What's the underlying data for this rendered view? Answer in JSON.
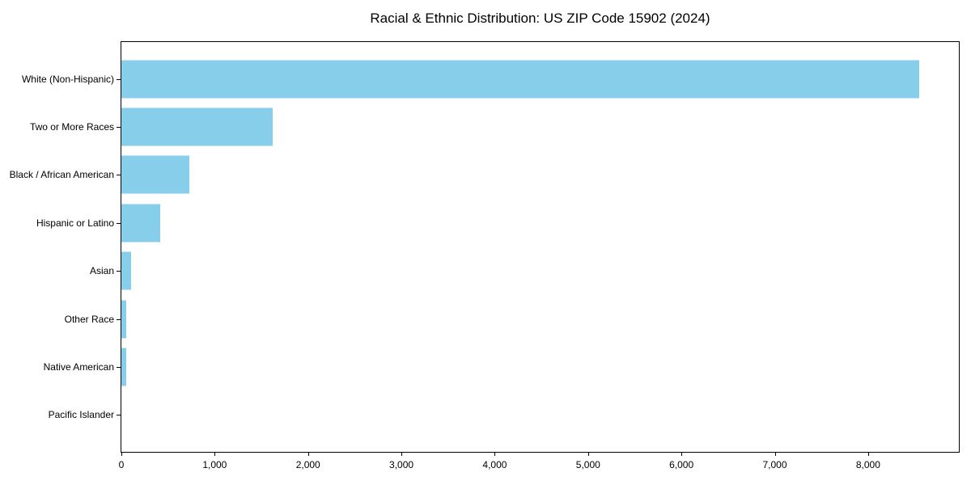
{
  "chart_data": {
    "type": "bar",
    "orientation": "horizontal",
    "title": "Racial & Ethnic Distribution: US ZIP Code 15902 (2024)",
    "xlabel": "",
    "ylabel": "",
    "categories": [
      "White (Non-Hispanic)",
      "Two or More Races",
      "Black / African American",
      "Hispanic or Latino",
      "Asian",
      "Other Race",
      "Native American",
      "Pacific Islander"
    ],
    "values": [
      8545,
      1619,
      727,
      415,
      104,
      55,
      48,
      0
    ],
    "xlim": [
      0,
      8972
    ],
    "x_ticks": [
      {
        "value": 0,
        "label": "0"
      },
      {
        "value": 1000,
        "label": "1,000"
      },
      {
        "value": 2000,
        "label": "2,000"
      },
      {
        "value": 3000,
        "label": "3,000"
      },
      {
        "value": 4000,
        "label": "4,000"
      },
      {
        "value": 5000,
        "label": "5,000"
      },
      {
        "value": 6000,
        "label": "6,000"
      },
      {
        "value": 7000,
        "label": "7,000"
      },
      {
        "value": 8000,
        "label": "8,000"
      }
    ],
    "bar_color": "#87CEEB",
    "grid": false,
    "legend": null
  }
}
